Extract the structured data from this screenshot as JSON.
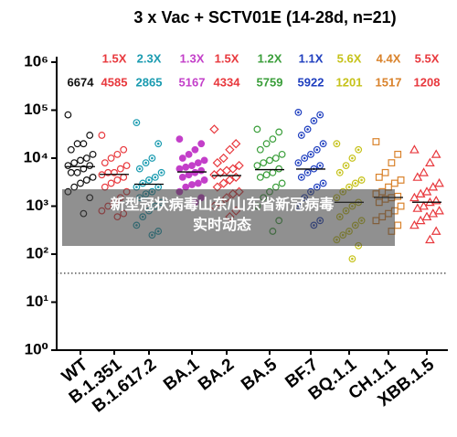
{
  "chart_data": {
    "type": "dot",
    "title": "3 x Vac + SCTV01E (14-28d, n=21)",
    "log_scale": true,
    "ylim": [
      1,
      1000000
    ],
    "yticks": [
      {
        "value": 1,
        "label": "10⁰"
      },
      {
        "value": 10,
        "label": "10¹"
      },
      {
        "value": 100,
        "label": "10²"
      },
      {
        "value": 1000,
        "label": "10³"
      },
      {
        "value": 10000,
        "label": "10⁴"
      },
      {
        "value": 100000,
        "label": "10⁵"
      },
      {
        "value": 1000000,
        "label": "10⁶"
      }
    ],
    "threshold": 40,
    "groups": [
      {
        "name": "WT",
        "color": "#111111",
        "marker": "circle",
        "gmt": 6674,
        "values": [
          80000,
          30000,
          20000,
          20000,
          15000,
          12000,
          10000,
          9000,
          8000,
          7000,
          7000,
          6000,
          5000,
          5000,
          4000,
          3500,
          3000,
          2500,
          2000,
          1500,
          700
        ]
      },
      {
        "name": "B.1.351",
        "color": "#e8383d",
        "marker": "circle",
        "fold": "1.5X",
        "gmt": 4585,
        "values": [
          30000,
          15000,
          12000,
          10000,
          8000,
          7000,
          6000,
          5000,
          5000,
          4500,
          4000,
          3500,
          3000,
          2500,
          2000,
          1500,
          1200,
          1000,
          800,
          700,
          600
        ]
      },
      {
        "name": "B.1.617.2",
        "color": "#1a9bb0",
        "marker": "circle-dot",
        "fold": "2.3X",
        "gmt": 2865,
        "values": [
          55000,
          20000,
          10000,
          8000,
          6000,
          5000,
          4000,
          3500,
          3000,
          2500,
          2500,
          2000,
          1800,
          1500,
          1200,
          1000,
          800,
          600,
          400,
          300,
          250
        ]
      },
      {
        "name": "BA.1",
        "color": "#c33fc9",
        "marker": "filled",
        "fold": "1.3X",
        "gmt": 5167,
        "values": [
          25000,
          20000,
          15000,
          12000,
          10000,
          9000,
          8000,
          7000,
          6500,
          6000,
          5500,
          5000,
          4500,
          4000,
          3500,
          3000,
          2800,
          2500,
          2000,
          1500,
          1200
        ]
      },
      {
        "name": "BA.2",
        "color": "#e8383d",
        "marker": "diamond",
        "fold": "1.5X",
        "gmt": 4334,
        "values": [
          40000,
          20000,
          15000,
          10000,
          8000,
          7000,
          6000,
          5500,
          5000,
          4500,
          4000,
          3500,
          3000,
          2500,
          2000,
          1800,
          1500,
          1200,
          1000,
          800,
          600
        ]
      },
      {
        "name": "BA.5",
        "color": "#3a9e3a",
        "marker": "circle",
        "fold": "1.2X",
        "gmt": 5759,
        "values": [
          40000,
          35000,
          25000,
          20000,
          15000,
          12000,
          10000,
          9000,
          8000,
          7000,
          6000,
          5000,
          4500,
          4000,
          3000,
          2500,
          2000,
          1500,
          1000,
          500,
          300
        ]
      },
      {
        "name": "BF.7",
        "color": "#1f3fbf",
        "marker": "circle-dot",
        "fold": "1.1X",
        "gmt": 5922,
        "values": [
          90000,
          80000,
          60000,
          40000,
          30000,
          20000,
          15000,
          12000,
          10000,
          8000,
          7000,
          6000,
          5000,
          4000,
          3000,
          2500,
          2000,
          1500,
          1000,
          500,
          400
        ]
      },
      {
        "name": "BQ.1.1",
        "color": "#c6c21a",
        "marker": "circle-dot",
        "fold": "5.6X",
        "gmt": 1201,
        "values": [
          20000,
          15000,
          10000,
          7000,
          5000,
          3500,
          3000,
          2500,
          2000,
          1500,
          1200,
          1000,
          800,
          600,
          500,
          400,
          300,
          250,
          200,
          150,
          80
        ]
      },
      {
        "name": "CH.1.1",
        "color": "#d9822b",
        "marker": "square",
        "fold": "4.4X",
        "gmt": 1517,
        "values": [
          22000,
          12000,
          8000,
          5000,
          4000,
          3500,
          3000,
          2500,
          2000,
          1800,
          1600,
          1500,
          1400,
          1200,
          1000,
          800,
          700,
          600,
          500,
          400,
          300
        ]
      },
      {
        "name": "XBB.1.5",
        "color": "#e8383d",
        "marker": "triangle",
        "fold": "5.5X",
        "gmt": 1208,
        "values": [
          15000,
          12000,
          8000,
          5000,
          4000,
          3000,
          2500,
          2000,
          1800,
          1500,
          1300,
          1200,
          1000,
          900,
          800,
          700,
          600,
          500,
          400,
          300,
          200
        ]
      }
    ]
  },
  "overlay": {
    "lines": [
      "新型冠状病毒山东/山东省新冠病毒",
      "实时动态"
    ]
  }
}
